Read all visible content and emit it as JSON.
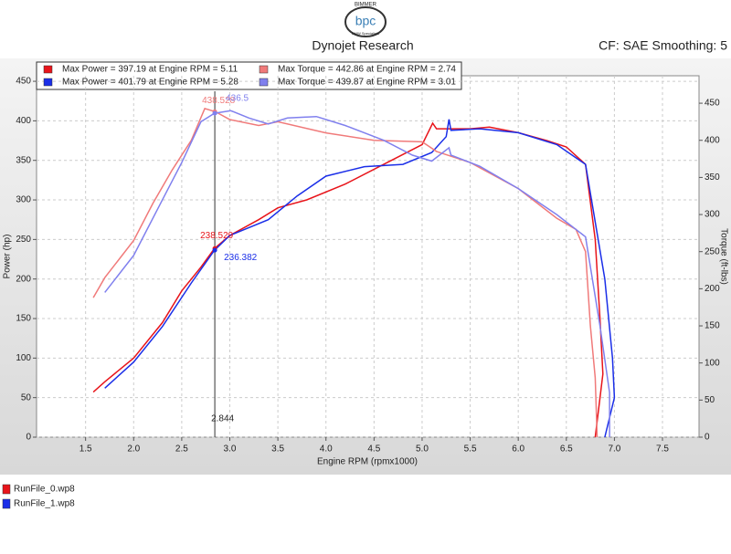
{
  "header": {
    "brand": "BIMMER",
    "logo": "bpc",
    "tagline": "BMW Specialists",
    "title": "Dynojet Research",
    "settings": "CF: SAE Smoothing: 5"
  },
  "chart_data": {
    "type": "line",
    "xlabel": "Engine RPM (rpmx1000)",
    "ylabel": "Power (hp)",
    "y2label": "Torque (ft-lbs)",
    "xlim": [
      0.99,
      7.88
    ],
    "ylim": [
      0,
      457
    ],
    "y2lim": [
      0,
      487
    ],
    "xticks": [
      {
        "value": 1.5,
        "label": "1.5"
      },
      {
        "value": 2,
        "label": "2.0"
      },
      {
        "value": 2.5,
        "label": "2.5"
      },
      {
        "value": 3,
        "label": "3.0"
      },
      {
        "value": 3.5,
        "label": "3.5"
      },
      {
        "value": 4,
        "label": "4.0"
      },
      {
        "value": 4.5,
        "label": "4.5"
      },
      {
        "value": 5,
        "label": "5.0"
      },
      {
        "value": 5.5,
        "label": "5.5"
      },
      {
        "value": 6,
        "label": "6.0"
      },
      {
        "value": 6.5,
        "label": "6.5"
      },
      {
        "value": 7,
        "label": "7.0"
      },
      {
        "value": 7.5,
        "label": "7.5"
      }
    ],
    "yticks": [
      0,
      50,
      100,
      150,
      200,
      250,
      300,
      350,
      400,
      450
    ],
    "y2ticks": [
      0,
      50,
      100,
      150,
      200,
      250,
      300,
      350,
      400,
      450
    ],
    "grid": true,
    "series": [
      {
        "name": "Max Power = 397.19 at Engine RPM = 5.11",
        "color": "#e8141a",
        "x": [
          1.58,
          1.7,
          2.0,
          2.3,
          2.5,
          2.7,
          2.84,
          3.0,
          3.3,
          3.5,
          3.8,
          4.2,
          4.6,
          5.0,
          5.11,
          5.15,
          5.5,
          5.7,
          6.0,
          6.3,
          6.5,
          6.7,
          6.8,
          6.85,
          6.88,
          6.8
        ],
        "values": [
          57,
          70,
          100,
          145,
          185,
          215,
          238.5,
          255,
          275,
          290,
          300,
          320,
          345,
          370,
          397,
          390,
          390,
          392,
          385,
          375,
          367,
          345,
          250,
          150,
          80,
          0
        ]
      },
      {
        "name": "Max Power = 401.79 at Engine RPM = 5.28",
        "color": "#1a2ee8",
        "x": [
          1.7,
          2.0,
          2.3,
          2.6,
          2.84,
          3.0,
          3.4,
          3.7,
          4.0,
          4.4,
          4.8,
          5.1,
          5.25,
          5.28,
          5.3,
          5.6,
          6.0,
          6.4,
          6.7,
          6.9,
          6.98,
          7.0,
          6.9
        ],
        "values": [
          62,
          95,
          140,
          195,
          236.4,
          255,
          275,
          305,
          330,
          342,
          345,
          360,
          380,
          402,
          388,
          390,
          385,
          370,
          345,
          200,
          100,
          50,
          0
        ]
      },
      {
        "name": "Max Torque = 442.86 at Engine RPM = 2.74",
        "color": "#f07a7a",
        "axis": "y2",
        "x": [
          1.58,
          1.7,
          2.0,
          2.2,
          2.4,
          2.6,
          2.74,
          2.85,
          3.0,
          3.3,
          3.5,
          4.0,
          4.5,
          5.0,
          5.15,
          5.5,
          6.0,
          6.4,
          6.6,
          6.7,
          6.75,
          6.8,
          6.82
        ],
        "values": [
          188,
          215,
          265,
          315,
          360,
          400,
          442.9,
          438.5,
          428,
          420,
          425,
          410,
          400,
          398,
          385,
          370,
          335,
          295,
          280,
          250,
          150,
          80,
          0
        ]
      },
      {
        "name": "Max Torque = 439.87 at Engine RPM = 3.01",
        "color": "#8080ee",
        "axis": "y2",
        "x": [
          1.7,
          2.0,
          2.3,
          2.5,
          2.7,
          2.84,
          3.01,
          3.2,
          3.4,
          3.6,
          3.9,
          4.2,
          4.6,
          4.9,
          5.1,
          5.28,
          5.3,
          5.6,
          6.0,
          6.4,
          6.7,
          6.85,
          6.95,
          6.95
        ],
        "values": [
          195,
          245,
          320,
          370,
          425,
          436.5,
          439.9,
          430,
          422,
          430,
          432,
          420,
          400,
          380,
          372,
          390,
          380,
          365,
          335,
          300,
          270,
          150,
          60,
          0
        ]
      }
    ],
    "cursor": 2.844,
    "annotations": [
      {
        "x": 2.844,
        "value": 238.529,
        "color": "#e8141a"
      },
      {
        "x": 2.844,
        "value": 236.382,
        "color": "#1a2ee8"
      },
      {
        "x": 2.844,
        "value": 438.528,
        "color": "#f07a7a",
        "axis": "y2"
      },
      {
        "x": 2.844,
        "value": 436.5,
        "color": "#8080ee",
        "axis": "y2"
      }
    ],
    "runs": [
      {
        "name": "RunFile_0.wp8",
        "color": "#e8141a"
      },
      {
        "name": "RunFile_1.wp8",
        "color": "#1a2ee8"
      }
    ]
  }
}
